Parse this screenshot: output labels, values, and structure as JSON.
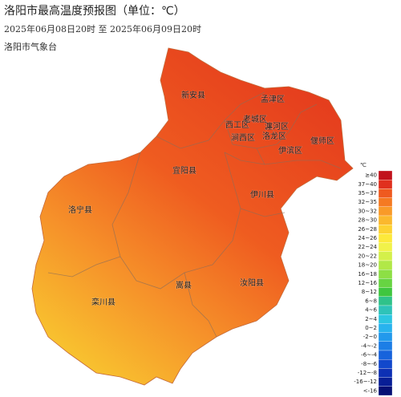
{
  "header": {
    "title": "洛阳市最高温度预报图（单位：℃）",
    "period": "2025年06月08日20时  至  2025年06月09日20时",
    "issuer": "洛阳市气象台"
  },
  "regions": [
    "新安县",
    "孟津区",
    "老城区",
    "西工区",
    "瀍河区",
    "涧西区",
    "洛龙区",
    "偃师区",
    "伊滨区",
    "宜阳县",
    "伊川县",
    "洛宁县",
    "嵩县",
    "汝阳县",
    "栾川县"
  ],
  "legend": {
    "unit": "℃",
    "items": [
      {
        "label": "≥40",
        "color": "#c1121c"
      },
      {
        "label": "37~40",
        "color": "#e0301e"
      },
      {
        "label": "35~37",
        "color": "#ef5a1f"
      },
      {
        "label": "32~35",
        "color": "#f57a22"
      },
      {
        "label": "30~32",
        "color": "#f99a28"
      },
      {
        "label": "28~30",
        "color": "#fbb82d"
      },
      {
        "label": "26~28",
        "color": "#fdd232"
      },
      {
        "label": "24~26",
        "color": "#fde93b"
      },
      {
        "label": "22~24",
        "color": "#f1f24a"
      },
      {
        "label": "20~22",
        "color": "#d4f04a"
      },
      {
        "label": "18~20",
        "color": "#b1e847"
      },
      {
        "label": "16~18",
        "color": "#8ddf45"
      },
      {
        "label": "12~16",
        "color": "#67d442"
      },
      {
        "label": "8~12",
        "color": "#3fc63f"
      },
      {
        "label": "6~8",
        "color": "#2fc28a"
      },
      {
        "label": "4~6",
        "color": "#2ec3b8"
      },
      {
        "label": "2~4",
        "color": "#2cc6e1"
      },
      {
        "label": "0~2",
        "color": "#28b3ee"
      },
      {
        "label": "-2~0",
        "color": "#2299ec"
      },
      {
        "label": "-4~-2",
        "color": "#1c7ee6"
      },
      {
        "label": "-6~-4",
        "color": "#1763dc"
      },
      {
        "label": "-8~-6",
        "color": "#1248cc"
      },
      {
        "label": "-12~-8",
        "color": "#0d30b4"
      },
      {
        "label": "-16~-12",
        "color": "#081e96"
      },
      {
        "label": "<-16",
        "color": "#050f74"
      }
    ]
  }
}
